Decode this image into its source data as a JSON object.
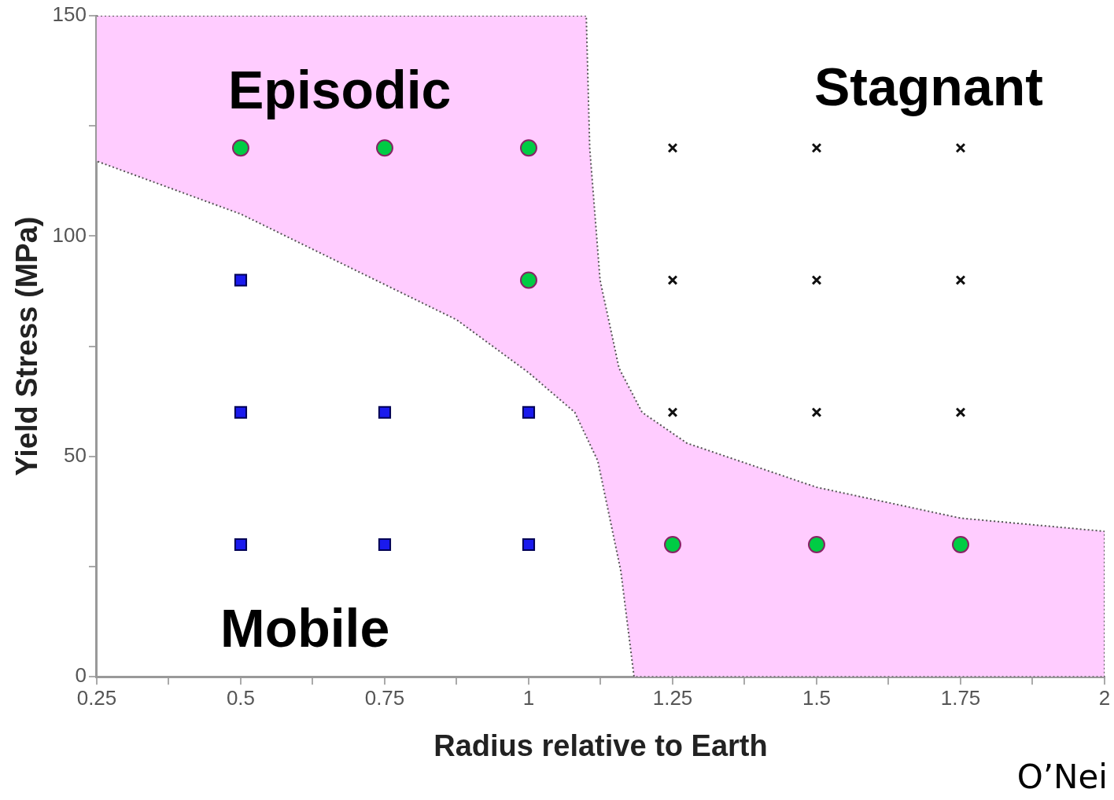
{
  "chart_data": {
    "type": "scatter",
    "xlabel": "Radius relative to Earth",
    "ylabel": "Yield Stress (MPa)",
    "xlim": [
      0.25,
      2
    ],
    "ylim": [
      0,
      150
    ],
    "xticks": [
      0.25,
      {
        "value": 0.375,
        "label": null
      },
      0.5,
      {
        "value": 0.625,
        "label": null
      },
      0.75,
      {
        "value": 0.875,
        "label": null
      },
      1,
      {
        "value": 1.125,
        "label": null
      },
      1.25,
      {
        "value": 1.375,
        "label": null
      },
      1.5,
      {
        "value": 1.625,
        "label": null
      },
      1.75,
      {
        "value": 1.875,
        "label": null
      },
      2
    ],
    "yticks": [
      0,
      {
        "value": 25,
        "label": null
      },
      50,
      {
        "value": 75,
        "label": null
      },
      100,
      {
        "value": 125,
        "label": null
      },
      150
    ],
    "grid": false,
    "legend": false,
    "series": [
      {
        "type": "area",
        "color": "#ffccff",
        "x": [
          0.25,
          1.1,
          1.106,
          1.124,
          1.157,
          1.197,
          1.275,
          1.5,
          1.75,
          2,
          2,
          1.183,
          1.16,
          1.12,
          1.08,
          1,
          0.875,
          0.75,
          0.5,
          0.25
        ],
        "values": [
          150,
          150,
          120,
          90,
          70,
          60,
          53,
          43,
          36,
          33,
          0,
          0,
          24,
          49,
          60,
          69,
          81,
          89,
          105,
          117
        ]
      },
      {
        "marker": "square",
        "color": "#1a1aee",
        "x": [
          0.5,
          0.5,
          0.75,
          1,
          0.5,
          0.75,
          1
        ],
        "values": [
          90,
          60,
          60,
          60,
          30,
          30,
          30
        ]
      },
      {
        "marker": "circle",
        "color": "#00cc44",
        "x": [
          0.5,
          0.75,
          1,
          1,
          1.25,
          1.5,
          1.75
        ],
        "values": [
          120,
          120,
          120,
          90,
          30,
          30,
          30
        ]
      },
      {
        "marker": "cross",
        "color": "#111111",
        "x": [
          1.25,
          1.5,
          1.75,
          1.25,
          1.5,
          1.75,
          1.25,
          1.5,
          1.75
        ],
        "values": [
          120,
          120,
          120,
          90,
          90,
          90,
          60,
          60,
          60
        ]
      }
    ],
    "annotations": [
      "Episodic",
      "Stagnant",
      "Mobile",
      "O’Nei"
    ]
  }
}
